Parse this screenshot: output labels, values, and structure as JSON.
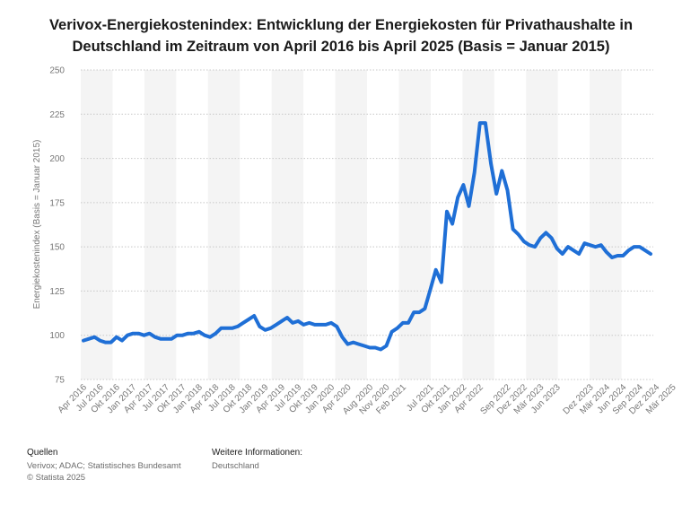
{
  "title_lines": [
    "Verivox-Energiekostenindex: Entwicklung der Energiekosten für Privathaushalte in",
    "Deutschland im Zeitraum von April 2016 bis April 2025 (Basis = Januar 2015)"
  ],
  "footer": {
    "sources_heading": "Quellen",
    "sources_line1": "Verivox; ADAC; Statistisches Bundesamt",
    "sources_line2": "© Statista 2025",
    "info_heading": "Weitere Informationen:",
    "info_line1": "Deutschland"
  },
  "colors": {
    "line": "#1f6fd6",
    "band": "#f4f4f4",
    "grid": "#c8c8c8",
    "tick": "#777777"
  },
  "chart_data": {
    "type": "line",
    "title": "Verivox-Energiekostenindex: Entwicklung der Energiekosten für Privathaushalte in Deutschland im Zeitraum von April 2016 bis April 2025 (Basis = Januar 2015)",
    "xlabel": "",
    "ylabel": "Energiekostenindex (Basis = Januar 2015)",
    "ylim": [
      75,
      250
    ],
    "yticks": [
      75,
      100,
      125,
      150,
      175,
      200,
      225,
      250
    ],
    "grid": true,
    "x_start": "April 2016",
    "x_end": "April 2025",
    "xtick_labels": [
      "Apr 2016",
      "Jul 2016",
      "Okt 2016",
      "Jan 2017",
      "Apr 2017",
      "Jul 2017",
      "Okt 2017",
      "Jan 2018",
      "Apr 2018",
      "Jul 2018",
      "Okt 2018",
      "Jan 2019",
      "Apr 2019",
      "Jul 2019",
      "Okt 2019",
      "Jan 2020",
      "Apr 2020",
      "Aug 2020",
      "Nov 2020",
      "Feb 2021",
      "Jul 2021",
      "Okt 2021",
      "Jan 2022",
      "Apr 2022",
      "Sep 2022",
      "Dez 2022",
      "Mär 2023",
      "Jun 2023",
      "Dez 2023",
      "Mär 2024",
      "Jun 2024",
      "Sep 2024",
      "Dez 2024",
      "Mär 2025"
    ],
    "xtick_months": [
      0,
      3,
      6,
      9,
      12,
      15,
      18,
      21,
      24,
      27,
      30,
      33,
      36,
      39,
      42,
      45,
      48,
      52,
      55,
      58,
      63,
      66,
      69,
      72,
      77,
      80,
      83,
      86,
      92,
      95,
      98,
      101,
      104,
      107
    ],
    "series": [
      {
        "values": [
          97,
          98,
          99,
          97,
          96,
          96,
          99,
          97,
          100,
          101,
          101,
          100,
          101,
          99,
          98,
          98,
          98,
          100,
          100,
          101,
          101,
          102,
          100,
          99,
          101,
          104,
          104,
          104,
          105,
          107,
          109,
          111,
          105,
          103,
          104,
          106,
          108,
          110,
          107,
          108,
          106,
          107,
          106,
          106,
          106,
          107,
          105,
          99,
          95,
          96,
          95,
          94,
          93,
          93,
          92,
          94,
          102,
          104,
          107,
          107,
          113,
          113,
          115,
          126,
          137,
          130,
          170,
          163,
          178,
          185,
          173,
          192,
          220,
          220,
          197,
          180,
          193,
          182,
          160,
          157,
          153,
          151,
          150,
          155,
          158,
          155,
          149,
          146,
          150,
          148,
          146,
          152,
          151,
          150,
          151,
          147,
          144,
          145,
          145,
          148,
          150,
          150,
          148,
          146
        ]
      }
    ]
  }
}
